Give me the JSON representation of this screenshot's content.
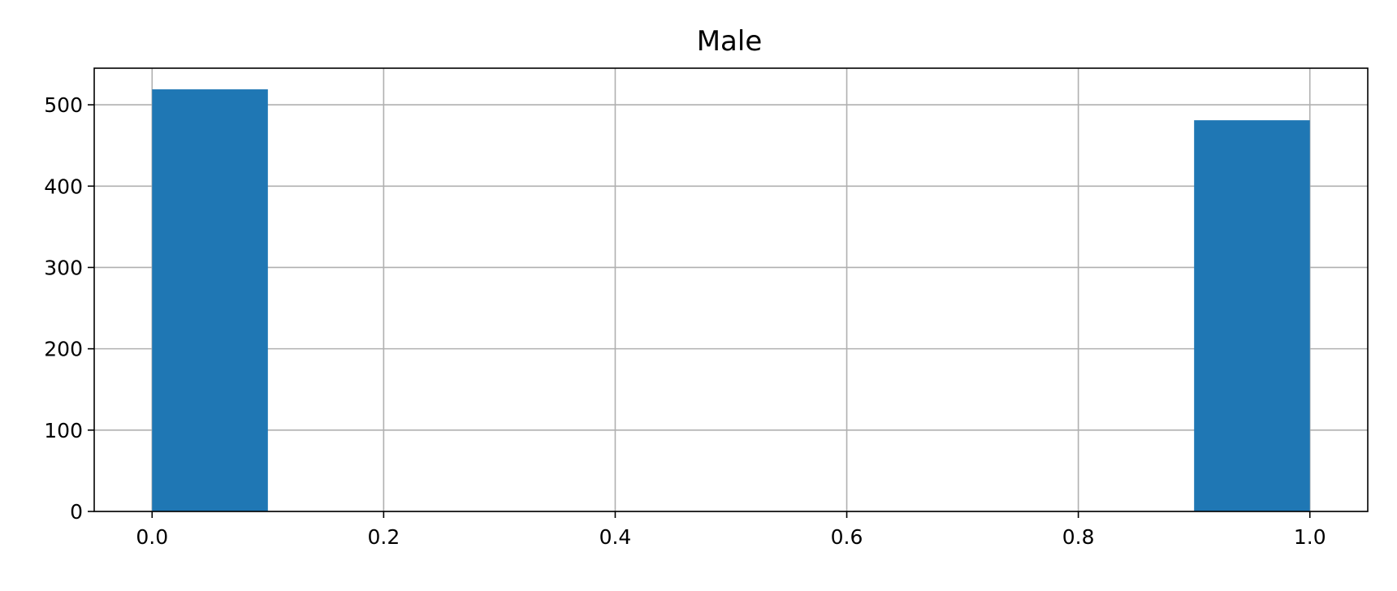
{
  "chart_data": {
    "type": "bar",
    "title": "Male",
    "xlabel": "",
    "ylabel": "",
    "bins": [
      {
        "x0": 0.0,
        "x1": 0.1,
        "count": 519
      },
      {
        "x0": 0.1,
        "x1": 0.2,
        "count": 0
      },
      {
        "x0": 0.2,
        "x1": 0.3,
        "count": 0
      },
      {
        "x0": 0.3,
        "x1": 0.4,
        "count": 0
      },
      {
        "x0": 0.4,
        "x1": 0.5,
        "count": 0
      },
      {
        "x0": 0.5,
        "x1": 0.6,
        "count": 0
      },
      {
        "x0": 0.6,
        "x1": 0.7,
        "count": 0
      },
      {
        "x0": 0.7,
        "x1": 0.8,
        "count": 0
      },
      {
        "x0": 0.8,
        "x1": 0.9,
        "count": 0
      },
      {
        "x0": 0.9,
        "x1": 1.0,
        "count": 481
      }
    ],
    "xlim": [
      -0.05,
      1.05
    ],
    "ylim": [
      0,
      545
    ],
    "xticks": [
      0.0,
      0.2,
      0.4,
      0.6,
      0.8,
      1.0
    ],
    "xtick_labels": [
      "0.0",
      "0.2",
      "0.4",
      "0.6",
      "0.8",
      "1.0"
    ],
    "yticks": [
      0,
      100,
      200,
      300,
      400,
      500
    ],
    "ytick_labels": [
      "0",
      "100",
      "200",
      "300",
      "400",
      "500"
    ],
    "grid": true,
    "bar_color": "#1f77b4"
  }
}
